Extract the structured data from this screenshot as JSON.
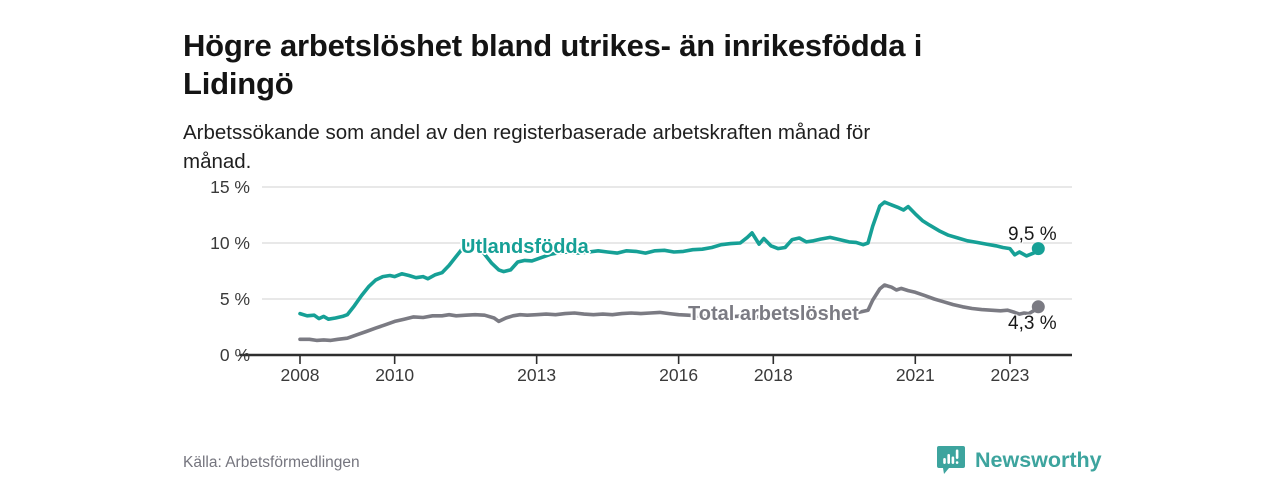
{
  "header": {
    "title_lines": [
      "Högre arbetslöshet bland utrikes- än inrikesfödda i",
      "Lidingö"
    ],
    "subtitle_lines": [
      "Arbetssökande som andel av den registerbaserade arbetskraften månad för",
      "månad."
    ]
  },
  "footer": {
    "source": "Källa: Arbetsförmedlingen",
    "brand": "Newsworthy"
  },
  "chart_data": {
    "type": "line",
    "title": "Högre arbetslöshet bland utrikes- än inrikesfödda i Lidingö",
    "subtitle": "Arbetssökande som andel av den registerbaserade arbetskraften månad för månad.",
    "xlabel": "",
    "ylabel": "",
    "unit": "%",
    "grid": true,
    "legend_position": "inline-labels",
    "xlim": [
      2008,
      2023.6
    ],
    "ylim": [
      0,
      15
    ],
    "yticks": [
      {
        "value": 0,
        "label": "0 %"
      },
      {
        "value": 5,
        "label": "5 %"
      },
      {
        "value": 10,
        "label": "10 %"
      },
      {
        "value": 15,
        "label": "15 %"
      }
    ],
    "xticks": [
      {
        "value": 2008,
        "label": "2008"
      },
      {
        "value": 2010,
        "label": "2010"
      },
      {
        "value": 2013,
        "label": "2013"
      },
      {
        "value": 2016,
        "label": "2016"
      },
      {
        "value": 2018,
        "label": "2018"
      },
      {
        "value": 2021,
        "label": "2021"
      },
      {
        "value": 2023,
        "label": "2023"
      }
    ],
    "colors": {
      "teal": "#16a096",
      "gray": "#7b7b83",
      "grid": "#d9d9d9",
      "axis": "#2e2e2e",
      "brand_teal": "#3da49e"
    },
    "series": [
      {
        "id": "utlandsfodda",
        "label": "Utlandsfödda",
        "end_label": "9,5 %",
        "end_value": 9.5,
        "color": "#16a096",
        "points": [
          [
            2008.0,
            3.7
          ],
          [
            2008.15,
            3.5
          ],
          [
            2008.3,
            3.55
          ],
          [
            2008.4,
            3.25
          ],
          [
            2008.5,
            3.45
          ],
          [
            2008.6,
            3.2
          ],
          [
            2008.75,
            3.3
          ],
          [
            2008.9,
            3.45
          ],
          [
            2009.0,
            3.6
          ],
          [
            2009.15,
            4.4
          ],
          [
            2009.3,
            5.3
          ],
          [
            2009.45,
            6.1
          ],
          [
            2009.6,
            6.7
          ],
          [
            2009.75,
            7.0
          ],
          [
            2009.9,
            7.1
          ],
          [
            2010.0,
            7.0
          ],
          [
            2010.15,
            7.25
          ],
          [
            2010.3,
            7.1
          ],
          [
            2010.45,
            6.9
          ],
          [
            2010.6,
            7.0
          ],
          [
            2010.7,
            6.8
          ],
          [
            2010.85,
            7.15
          ],
          [
            2011.0,
            7.35
          ],
          [
            2011.15,
            8.0
          ],
          [
            2011.3,
            8.8
          ],
          [
            2011.45,
            9.6
          ],
          [
            2011.55,
            9.9
          ],
          [
            2011.65,
            9.7
          ],
          [
            2011.75,
            9.85
          ],
          [
            2011.9,
            9.0
          ],
          [
            2012.05,
            8.2
          ],
          [
            2012.2,
            7.6
          ],
          [
            2012.3,
            7.45
          ],
          [
            2012.45,
            7.6
          ],
          [
            2012.6,
            8.3
          ],
          [
            2012.75,
            8.45
          ],
          [
            2012.9,
            8.4
          ],
          [
            2013.1,
            8.7
          ],
          [
            2013.3,
            9.0
          ],
          [
            2013.5,
            9.15
          ],
          [
            2013.7,
            9.2
          ],
          [
            2013.9,
            9.1
          ],
          [
            2014.1,
            9.2
          ],
          [
            2014.3,
            9.3
          ],
          [
            2014.5,
            9.2
          ],
          [
            2014.7,
            9.1
          ],
          [
            2014.9,
            9.3
          ],
          [
            2015.1,
            9.25
          ],
          [
            2015.3,
            9.1
          ],
          [
            2015.5,
            9.3
          ],
          [
            2015.7,
            9.35
          ],
          [
            2015.9,
            9.2
          ],
          [
            2016.1,
            9.25
          ],
          [
            2016.3,
            9.4
          ],
          [
            2016.5,
            9.45
          ],
          [
            2016.7,
            9.6
          ],
          [
            2016.9,
            9.85
          ],
          [
            2017.1,
            9.95
          ],
          [
            2017.3,
            10.0
          ],
          [
            2017.45,
            10.5
          ],
          [
            2017.55,
            10.9
          ],
          [
            2017.7,
            9.9
          ],
          [
            2017.8,
            10.4
          ],
          [
            2017.95,
            9.75
          ],
          [
            2018.1,
            9.5
          ],
          [
            2018.25,
            9.6
          ],
          [
            2018.4,
            10.3
          ],
          [
            2018.55,
            10.45
          ],
          [
            2018.7,
            10.1
          ],
          [
            2018.85,
            10.2
          ],
          [
            2019.0,
            10.35
          ],
          [
            2019.2,
            10.5
          ],
          [
            2019.4,
            10.3
          ],
          [
            2019.6,
            10.1
          ],
          [
            2019.75,
            10.05
          ],
          [
            2019.9,
            9.85
          ],
          [
            2020.0,
            10.0
          ],
          [
            2020.1,
            11.5
          ],
          [
            2020.25,
            13.3
          ],
          [
            2020.35,
            13.65
          ],
          [
            2020.5,
            13.4
          ],
          [
            2020.65,
            13.15
          ],
          [
            2020.75,
            12.95
          ],
          [
            2020.85,
            13.25
          ],
          [
            2021.0,
            12.6
          ],
          [
            2021.15,
            12.0
          ],
          [
            2021.3,
            11.6
          ],
          [
            2021.5,
            11.1
          ],
          [
            2021.7,
            10.7
          ],
          [
            2021.9,
            10.45
          ],
          [
            2022.1,
            10.2
          ],
          [
            2022.3,
            10.05
          ],
          [
            2022.5,
            9.9
          ],
          [
            2022.7,
            9.75
          ],
          [
            2022.85,
            9.6
          ],
          [
            2023.0,
            9.5
          ],
          [
            2023.1,
            8.95
          ],
          [
            2023.2,
            9.2
          ],
          [
            2023.35,
            8.85
          ],
          [
            2023.5,
            9.1
          ],
          [
            2023.6,
            9.5
          ]
        ]
      },
      {
        "id": "total",
        "label": "Total arbetslöshet",
        "end_label": "4,3 %",
        "end_value": 4.3,
        "color": "#7b7b83",
        "points": [
          [
            2008.0,
            1.4
          ],
          [
            2008.2,
            1.4
          ],
          [
            2008.35,
            1.3
          ],
          [
            2008.5,
            1.35
          ],
          [
            2008.65,
            1.3
          ],
          [
            2008.8,
            1.4
          ],
          [
            2009.0,
            1.5
          ],
          [
            2009.2,
            1.8
          ],
          [
            2009.4,
            2.1
          ],
          [
            2009.6,
            2.4
          ],
          [
            2009.8,
            2.7
          ],
          [
            2010.0,
            3.0
          ],
          [
            2010.2,
            3.2
          ],
          [
            2010.4,
            3.4
          ],
          [
            2010.6,
            3.35
          ],
          [
            2010.8,
            3.5
          ],
          [
            2011.0,
            3.5
          ],
          [
            2011.15,
            3.6
          ],
          [
            2011.3,
            3.5
          ],
          [
            2011.5,
            3.55
          ],
          [
            2011.7,
            3.6
          ],
          [
            2011.9,
            3.55
          ],
          [
            2012.1,
            3.3
          ],
          [
            2012.2,
            3.0
          ],
          [
            2012.35,
            3.3
          ],
          [
            2012.5,
            3.5
          ],
          [
            2012.65,
            3.6
          ],
          [
            2012.8,
            3.55
          ],
          [
            2013.0,
            3.6
          ],
          [
            2013.2,
            3.65
          ],
          [
            2013.4,
            3.6
          ],
          [
            2013.6,
            3.7
          ],
          [
            2013.8,
            3.75
          ],
          [
            2014.0,
            3.65
          ],
          [
            2014.2,
            3.6
          ],
          [
            2014.4,
            3.65
          ],
          [
            2014.6,
            3.6
          ],
          [
            2014.8,
            3.7
          ],
          [
            2015.0,
            3.75
          ],
          [
            2015.2,
            3.7
          ],
          [
            2015.4,
            3.75
          ],
          [
            2015.6,
            3.8
          ],
          [
            2015.8,
            3.7
          ],
          [
            2016.0,
            3.6
          ],
          [
            2016.2,
            3.55
          ],
          [
            2016.4,
            3.5
          ],
          [
            2016.6,
            3.45
          ],
          [
            2016.8,
            3.5
          ],
          [
            2017.0,
            3.55
          ],
          [
            2017.2,
            3.45
          ],
          [
            2017.4,
            3.5
          ],
          [
            2017.6,
            3.4
          ],
          [
            2017.8,
            3.45
          ],
          [
            2018.0,
            3.4
          ],
          [
            2018.2,
            3.35
          ],
          [
            2018.4,
            3.4
          ],
          [
            2018.6,
            3.45
          ],
          [
            2018.8,
            3.5
          ],
          [
            2019.0,
            3.55
          ],
          [
            2019.2,
            3.6
          ],
          [
            2019.4,
            3.65
          ],
          [
            2019.6,
            3.7
          ],
          [
            2019.8,
            3.8
          ],
          [
            2020.0,
            4.0
          ],
          [
            2020.1,
            4.9
          ],
          [
            2020.25,
            5.9
          ],
          [
            2020.35,
            6.25
          ],
          [
            2020.5,
            6.05
          ],
          [
            2020.6,
            5.8
          ],
          [
            2020.7,
            5.95
          ],
          [
            2020.85,
            5.75
          ],
          [
            2021.0,
            5.6
          ],
          [
            2021.2,
            5.3
          ],
          [
            2021.4,
            5.0
          ],
          [
            2021.6,
            4.75
          ],
          [
            2021.8,
            4.5
          ],
          [
            2022.0,
            4.3
          ],
          [
            2022.2,
            4.15
          ],
          [
            2022.4,
            4.05
          ],
          [
            2022.6,
            4.0
          ],
          [
            2022.8,
            3.95
          ],
          [
            2022.95,
            4.0
          ],
          [
            2023.1,
            3.8
          ],
          [
            2023.2,
            3.65
          ],
          [
            2023.3,
            3.75
          ],
          [
            2023.4,
            3.7
          ],
          [
            2023.5,
            3.95
          ],
          [
            2023.6,
            4.3
          ]
        ]
      }
    ]
  }
}
